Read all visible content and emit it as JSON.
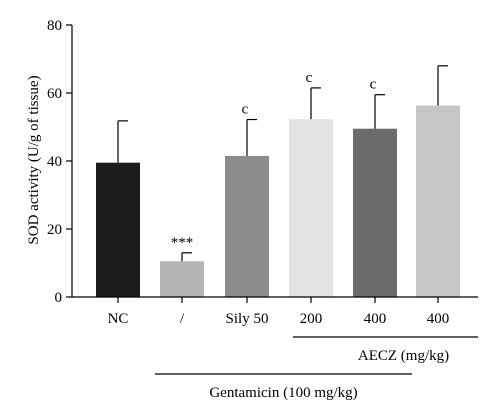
{
  "chart_data": {
    "type": "bar",
    "ylabel": "SOD activity (U/g of tissue)",
    "xlabel": "",
    "ylim": [
      0,
      80
    ],
    "yticks": [
      0,
      20,
      40,
      60,
      80
    ],
    "categories": [
      "NC",
      "/",
      "Sily 50",
      "200",
      "400",
      "400"
    ],
    "values": [
      39.5,
      10.5,
      41.5,
      52.3,
      49.5,
      56.3
    ],
    "errors": [
      12.3,
      2.5,
      10.7,
      9.2,
      10.0,
      11.7
    ],
    "annotations": [
      "",
      "***",
      "c",
      "c",
      "c",
      ""
    ],
    "colors": [
      "#1c1c1c",
      "#b3b3b3",
      "#8c8c8c",
      "#e3e3e3",
      "#6b6b6b",
      "#c6c6c6"
    ],
    "groups": [
      {
        "label": "AECZ (mg/kg)",
        "from_index": 3,
        "to_index": 5
      },
      {
        "label": "Gentamicin (100 mg/kg)",
        "from_index": 1,
        "to_index": 5
      }
    ],
    "grid": false,
    "legend": "none"
  }
}
